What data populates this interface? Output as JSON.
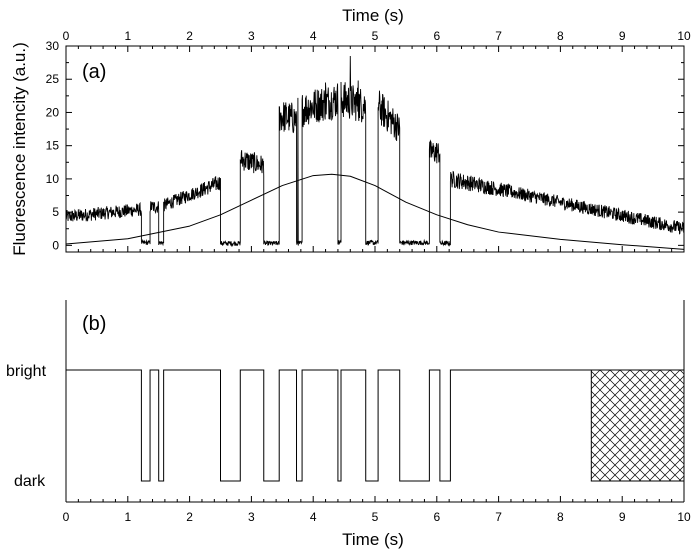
{
  "chart_data": [
    {
      "panel": "a",
      "type": "line",
      "panel_label": "(a)",
      "xlabel": "Time (s)",
      "ylabel": "Fluorescence intencity (a.u.)",
      "xlim": [
        0,
        10
      ],
      "ylim": [
        -1,
        30
      ],
      "xticks": [
        0,
        1,
        2,
        3,
        4,
        5,
        6,
        7,
        8,
        9,
        10
      ],
      "yticks": [
        0,
        5,
        10,
        15,
        20,
        25,
        30
      ],
      "series": [
        {
          "kind": "noisy-trace",
          "color": "#000000",
          "segments": [
            {
              "x0": 0.0,
              "x1": 1.22,
              "level0": 4.3,
              "level1": 5.4
            },
            {
              "x0": 1.22,
              "x1": 1.36,
              "level0": 0.4,
              "level1": 0.4
            },
            {
              "x0": 1.36,
              "x1": 1.5,
              "level0": 5.8,
              "level1": 5.8
            },
            {
              "x0": 1.5,
              "x1": 1.58,
              "level0": 0.4,
              "level1": 0.4
            },
            {
              "x0": 1.58,
              "x1": 2.5,
              "level0": 6.0,
              "level1": 9.5
            },
            {
              "x0": 2.5,
              "x1": 2.82,
              "level0": 0.3,
              "level1": 0.3
            },
            {
              "x0": 2.82,
              "x1": 3.2,
              "level0": 13.0,
              "level1": 12.0
            },
            {
              "x0": 3.2,
              "x1": 3.45,
              "level0": 0.3,
              "level1": 0.3
            },
            {
              "x0": 3.45,
              "x1": 3.73,
              "level0": 19.5,
              "level1": 19.0
            },
            {
              "x0": 3.73,
              "x1": 3.82,
              "level0": 0.3,
              "level1": 0.3
            },
            {
              "x0": 3.82,
              "x1": 4.4,
              "level0": 20.5,
              "level1": 22.0
            },
            {
              "x0": 4.4,
              "x1": 4.45,
              "level0": 0.5,
              "level1": 0.5
            },
            {
              "x0": 4.45,
              "x1": 4.85,
              "level0": 22.0,
              "level1": 21.0
            },
            {
              "x0": 4.85,
              "x1": 5.05,
              "level0": 0.4,
              "level1": 0.4
            },
            {
              "x0": 5.05,
              "x1": 5.4,
              "level0": 21.0,
              "level1": 17.5
            },
            {
              "x0": 5.4,
              "x1": 5.88,
              "level0": 0.4,
              "level1": 0.4
            },
            {
              "x0": 5.88,
              "x1": 6.05,
              "level0": 14.0,
              "level1": 14.0
            },
            {
              "x0": 6.05,
              "x1": 6.22,
              "level0": 0.3,
              "level1": 0.3
            },
            {
              "x0": 6.22,
              "x1": 10.0,
              "level0": 10.0,
              "level1": 2.5
            }
          ],
          "spikes": [
            {
              "x": 4.6,
              "y": 28.5
            },
            {
              "x": 4.73,
              "y": 24.8
            },
            {
              "x": 4.2,
              "y": 24.5
            },
            {
              "x": 3.75,
              "y": 22.2
            }
          ]
        },
        {
          "kind": "smooth-envelope",
          "color": "#000000",
          "x": [
            0,
            1,
            2,
            2.5,
            3,
            3.5,
            4,
            4.3,
            4.6,
            5,
            5.5,
            6,
            6.5,
            7,
            8,
            9,
            10
          ],
          "y": [
            0.2,
            1.0,
            2.9,
            4.6,
            6.8,
            9.0,
            10.5,
            10.7,
            10.4,
            9.0,
            6.5,
            4.6,
            3.1,
            2.0,
            0.9,
            0.1,
            -0.6
          ]
        }
      ]
    },
    {
      "panel": "b",
      "type": "line",
      "panel_label": "(b)",
      "xlabel": "Time (s)",
      "xlim": [
        0,
        10
      ],
      "xticks": [
        0,
        1,
        2,
        3,
        4,
        5,
        6,
        7,
        8,
        9,
        10
      ],
      "states": {
        "bright": "bright",
        "dark": "dark"
      },
      "dark_intervals": [
        [
          1.22,
          1.36
        ],
        [
          1.5,
          1.58
        ],
        [
          2.5,
          2.82
        ],
        [
          3.2,
          3.45
        ],
        [
          3.73,
          3.82
        ],
        [
          4.4,
          4.45
        ],
        [
          4.85,
          5.05
        ],
        [
          5.4,
          5.88
        ],
        [
          6.05,
          6.22
        ]
      ],
      "trace_end": 8.5,
      "hatched_region": [
        8.5,
        10.0
      ]
    }
  ]
}
